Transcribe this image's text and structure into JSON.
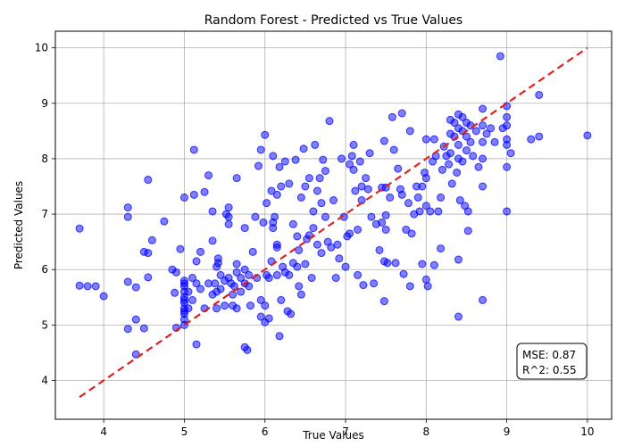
{
  "chart_data": {
    "type": "scatter",
    "title": "Random Forest - Predicted vs True Values",
    "xlabel": "True Values",
    "ylabel": "Predicted Values",
    "xlim": [
      3.4,
      10.3
    ],
    "ylim": [
      3.3,
      10.3
    ],
    "x_ticks": [
      "4",
      "5",
      "6",
      "7",
      "8",
      "9",
      "10"
    ],
    "y_ticks": [
      "4",
      "5",
      "6",
      "7",
      "8",
      "9",
      "10"
    ],
    "grid": true,
    "colors": {
      "points": "#0000ff",
      "ideal_line": "#dd2222"
    },
    "ideal_line": {
      "style": "dashed",
      "x": [
        3.7,
        10.0
      ],
      "y": [
        3.7,
        10.0
      ]
    },
    "stats": {
      "mse_text": "MSE: 0.87",
      "r2_text": "R^2: 0.55"
    },
    "points": [
      [
        3.7,
        6.74
      ],
      [
        3.7,
        5.71
      ],
      [
        3.8,
        5.7
      ],
      [
        3.9,
        5.7
      ],
      [
        4.0,
        5.52
      ],
      [
        4.3,
        7.12
      ],
      [
        4.3,
        6.95
      ],
      [
        4.3,
        5.78
      ],
      [
        4.3,
        4.93
      ],
      [
        4.4,
        5.1
      ],
      [
        4.4,
        4.47
      ],
      [
        4.4,
        5.68
      ],
      [
        4.5,
        6.32
      ],
      [
        4.5,
        4.94
      ],
      [
        4.55,
        7.62
      ],
      [
        4.55,
        6.3
      ],
      [
        4.55,
        5.86
      ],
      [
        4.6,
        6.53
      ],
      [
        4.75,
        6.87
      ],
      [
        4.85,
        6.0
      ],
      [
        4.88,
        5.58
      ],
      [
        4.9,
        5.95
      ],
      [
        4.9,
        4.95
      ],
      [
        4.95,
        6.37
      ],
      [
        5.0,
        5.8
      ],
      [
        5.0,
        5.7
      ],
      [
        5.0,
        5.6
      ],
      [
        5.0,
        5.5
      ],
      [
        5.0,
        5.4
      ],
      [
        5.0,
        5.3
      ],
      [
        5.0,
        5.2
      ],
      [
        5.0,
        5.1
      ],
      [
        5.0,
        5.0
      ],
      [
        5.0,
        5.75
      ],
      [
        5.0,
        5.45
      ],
      [
        5.0,
        5.25
      ],
      [
        5.0,
        7.3
      ],
      [
        5.05,
        5.6
      ],
      [
        5.05,
        5.3
      ],
      [
        5.1,
        5.85
      ],
      [
        5.1,
        5.45
      ],
      [
        5.12,
        8.16
      ],
      [
        5.12,
        7.35
      ],
      [
        5.15,
        6.15
      ],
      [
        5.15,
        4.65
      ],
      [
        5.15,
        5.75
      ],
      [
        5.2,
        5.65
      ],
      [
        5.2,
        6.32
      ],
      [
        5.25,
        5.3
      ],
      [
        5.25,
        7.4
      ],
      [
        5.3,
        5.75
      ],
      [
        5.3,
        7.7
      ],
      [
        5.35,
        7.05
      ],
      [
        5.35,
        6.52
      ],
      [
        5.35,
        5.55
      ],
      [
        5.38,
        5.75
      ],
      [
        5.4,
        6.05
      ],
      [
        5.4,
        5.6
      ],
      [
        5.4,
        5.3
      ],
      [
        5.42,
        6.2
      ],
      [
        5.42,
        6.12
      ],
      [
        5.45,
        5.9
      ],
      [
        5.45,
        5.65
      ],
      [
        5.5,
        5.8
      ],
      [
        5.5,
        5.35
      ],
      [
        5.52,
        7.0
      ],
      [
        5.55,
        6.95
      ],
      [
        5.55,
        6.82
      ],
      [
        5.55,
        7.12
      ],
      [
        5.55,
        5.85
      ],
      [
        5.58,
        5.75
      ],
      [
        5.6,
        5.55
      ],
      [
        5.6,
        5.35
      ],
      [
        5.62,
        5.7
      ],
      [
        5.65,
        7.65
      ],
      [
        5.65,
        6.1
      ],
      [
        5.65,
        5.95
      ],
      [
        5.65,
        5.3
      ],
      [
        5.7,
        5.85
      ],
      [
        5.7,
        5.6
      ],
      [
        5.75,
        6.75
      ],
      [
        5.75,
        6.0
      ],
      [
        5.75,
        5.75
      ],
      [
        5.75,
        4.6
      ],
      [
        5.78,
        4.55
      ],
      [
        5.8,
        5.9
      ],
      [
        5.8,
        5.7
      ],
      [
        5.82,
        5.35
      ],
      [
        5.85,
        6.32
      ],
      [
        5.88,
        6.95
      ],
      [
        5.9,
        5.85
      ],
      [
        5.92,
        7.87
      ],
      [
        5.95,
        5.45
      ],
      [
        5.95,
        5.15
      ],
      [
        5.95,
        8.16
      ],
      [
        5.98,
        6.85
      ],
      [
        6.0,
        8.43
      ],
      [
        6.0,
        5.35
      ],
      [
        6.0,
        5.05
      ],
      [
        6.02,
        7.2
      ],
      [
        6.02,
        5.9
      ],
      [
        6.05,
        5.85
      ],
      [
        6.05,
        5.12
      ],
      [
        6.08,
        7.42
      ],
      [
        6.08,
        6.15
      ],
      [
        6.1,
        8.05
      ],
      [
        6.1,
        6.85
      ],
      [
        6.1,
        6.75
      ],
      [
        6.12,
        6.95
      ],
      [
        6.15,
        6.4
      ],
      [
        6.15,
        6.45
      ],
      [
        6.15,
        5.9
      ],
      [
        6.15,
        7.35
      ],
      [
        6.18,
        7.85
      ],
      [
        6.18,
        4.8
      ],
      [
        6.2,
        7.5
      ],
      [
        6.2,
        5.45
      ],
      [
        6.22,
        6.05
      ],
      [
        6.25,
        7.95
      ],
      [
        6.25,
        5.95
      ],
      [
        6.28,
        5.25
      ],
      [
        6.3,
        5.9
      ],
      [
        6.3,
        7.55
      ],
      [
        6.32,
        5.2
      ],
      [
        6.35,
        6.82
      ],
      [
        6.35,
        6.12
      ],
      [
        6.38,
        7.98
      ],
      [
        6.4,
        6.6
      ],
      [
        6.4,
        6.05
      ],
      [
        6.42,
        6.35
      ],
      [
        6.42,
        5.7
      ],
      [
        6.45,
        7.3
      ],
      [
        6.45,
        5.55
      ],
      [
        6.48,
        8.18
      ],
      [
        6.5,
        7.5
      ],
      [
        6.5,
        6.1
      ],
      [
        6.52,
        6.55
      ],
      [
        6.55,
        7.65
      ],
      [
        6.55,
        6.62
      ],
      [
        6.58,
        5.85
      ],
      [
        6.6,
        7.05
      ],
      [
        6.6,
        6.75
      ],
      [
        6.62,
        8.25
      ],
      [
        6.65,
        6.45
      ],
      [
        6.65,
        7.42
      ],
      [
        6.68,
        7.65
      ],
      [
        6.7,
        7.2
      ],
      [
        6.7,
        6.3
      ],
      [
        6.72,
        7.98
      ],
      [
        6.75,
        7.78
      ],
      [
        6.75,
        6.95
      ],
      [
        6.78,
        6.5
      ],
      [
        6.8,
        8.68
      ],
      [
        6.82,
        6.4
      ],
      [
        6.85,
        7.25
      ],
      [
        6.88,
        5.85
      ],
      [
        6.9,
        6.45
      ],
      [
        6.92,
        6.2
      ],
      [
        6.95,
        8.0
      ],
      [
        6.98,
        6.95
      ],
      [
        7.0,
        6.05
      ],
      [
        7.02,
        6.6
      ],
      [
        7.05,
        7.9
      ],
      [
        7.05,
        6.65
      ],
      [
        7.08,
        8.05
      ],
      [
        7.1,
        7.8
      ],
      [
        7.1,
        8.25
      ],
      [
        7.12,
        7.42
      ],
      [
        7.15,
        5.9
      ],
      [
        7.15,
        6.72
      ],
      [
        7.18,
        7.95
      ],
      [
        7.2,
        7.5
      ],
      [
        7.2,
        7.25
      ],
      [
        7.22,
        5.72
      ],
      [
        7.25,
        7.65
      ],
      [
        7.28,
        7.45
      ],
      [
        7.3,
        8.1
      ],
      [
        7.32,
        6.95
      ],
      [
        7.35,
        5.75
      ],
      [
        7.38,
        6.82
      ],
      [
        7.42,
        6.35
      ],
      [
        7.45,
        7.48
      ],
      [
        7.45,
        6.85
      ],
      [
        7.48,
        8.32
      ],
      [
        7.48,
        6.15
      ],
      [
        7.48,
        5.43
      ],
      [
        7.5,
        7.48
      ],
      [
        7.5,
        6.98
      ],
      [
        7.5,
        6.72
      ],
      [
        7.52,
        6.12
      ],
      [
        7.55,
        7.3
      ],
      [
        7.58,
        8.75
      ],
      [
        7.6,
        8.16
      ],
      [
        7.62,
        6.12
      ],
      [
        7.65,
        7.82
      ],
      [
        7.68,
        7.45
      ],
      [
        7.7,
        8.82
      ],
      [
        7.7,
        7.35
      ],
      [
        7.72,
        5.92
      ],
      [
        7.75,
        6.72
      ],
      [
        7.78,
        7.2
      ],
      [
        7.8,
        8.5
      ],
      [
        7.8,
        5.7
      ],
      [
        7.82,
        6.65
      ],
      [
        7.85,
        7.0
      ],
      [
        7.88,
        7.5
      ],
      [
        7.9,
        7.3
      ],
      [
        7.92,
        7.05
      ],
      [
        7.95,
        6.1
      ],
      [
        7.95,
        7.5
      ],
      [
        7.98,
        7.75
      ],
      [
        8.0,
        8.35
      ],
      [
        8.0,
        7.65
      ],
      [
        8.0,
        7.15
      ],
      [
        8.0,
        5.82
      ],
      [
        8.02,
        5.7
      ],
      [
        8.05,
        7.05
      ],
      [
        8.08,
        7.95
      ],
      [
        8.1,
        8.35
      ],
      [
        8.1,
        6.08
      ],
      [
        8.12,
        8.05
      ],
      [
        8.15,
        7.05
      ],
      [
        8.18,
        7.3
      ],
      [
        8.18,
        6.38
      ],
      [
        8.2,
        7.8
      ],
      [
        8.22,
        8.22
      ],
      [
        8.25,
        8.05
      ],
      [
        8.28,
        7.9
      ],
      [
        8.3,
        8.7
      ],
      [
        8.3,
        8.45
      ],
      [
        8.3,
        8.1
      ],
      [
        8.32,
        7.55
      ],
      [
        8.35,
        8.65
      ],
      [
        8.35,
        8.4
      ],
      [
        8.38,
        7.75
      ],
      [
        8.4,
        8.8
      ],
      [
        8.4,
        8.55
      ],
      [
        8.4,
        8.25
      ],
      [
        8.4,
        8.0
      ],
      [
        8.4,
        6.18
      ],
      [
        8.4,
        5.15
      ],
      [
        8.42,
        7.25
      ],
      [
        8.45,
        8.75
      ],
      [
        8.45,
        8.5
      ],
      [
        8.45,
        7.95
      ],
      [
        8.48,
        7.15
      ],
      [
        8.5,
        8.65
      ],
      [
        8.5,
        8.4
      ],
      [
        8.5,
        8.15
      ],
      [
        8.52,
        7.05
      ],
      [
        8.52,
        6.7
      ],
      [
        8.55,
        8.6
      ],
      [
        8.55,
        8.3
      ],
      [
        8.58,
        8.05
      ],
      [
        8.62,
        8.5
      ],
      [
        8.65,
        7.85
      ],
      [
        8.7,
        8.9
      ],
      [
        8.7,
        8.6
      ],
      [
        8.7,
        8.3
      ],
      [
        8.7,
        8.0
      ],
      [
        8.7,
        7.5
      ],
      [
        8.7,
        5.45
      ],
      [
        8.75,
        8.45
      ],
      [
        8.8,
        8.55
      ],
      [
        8.85,
        8.3
      ],
      [
        8.92,
        9.85
      ],
      [
        8.95,
        8.55
      ],
      [
        9.0,
        8.95
      ],
      [
        9.0,
        8.75
      ],
      [
        9.0,
        8.6
      ],
      [
        9.0,
        8.35
      ],
      [
        9.0,
        8.25
      ],
      [
        9.0,
        7.85
      ],
      [
        9.0,
        7.05
      ],
      [
        9.05,
        8.1
      ],
      [
        9.3,
        8.35
      ],
      [
        9.4,
        9.15
      ],
      [
        9.4,
        8.4
      ],
      [
        10.0,
        8.42
      ]
    ]
  }
}
